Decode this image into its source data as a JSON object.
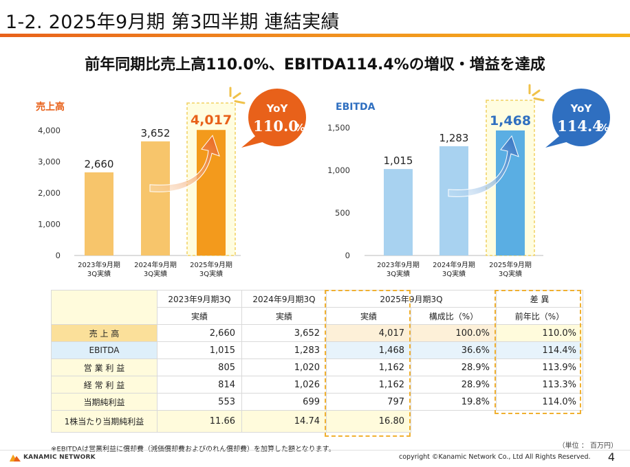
{
  "slide": {
    "title": "1-2. 2025年9月期 第3四半期 連結実績",
    "headline": "前年同期比売上高110.0%、EBITDA114.4%の増収・増益を達成"
  },
  "chart_data": [
    {
      "type": "bar",
      "title": "売上高",
      "categories": [
        "2023年9月期\n3Q実績",
        "2024年9月期\n3Q実績",
        "2025年9月期\n3Q実績"
      ],
      "values": [
        2660,
        3652,
        4017
      ],
      "value_labels": [
        "2,660",
        "3,652",
        "4,017"
      ],
      "ylim": [
        0,
        4000
      ],
      "ticks": [
        0,
        1000,
        2000,
        3000,
        4000
      ],
      "tick_labels": [
        "0",
        "1,000",
        "2,000",
        "3,000",
        "4,000"
      ],
      "yoy_label": "YoY",
      "yoy_value": "110.0",
      "yoy_unit": "%",
      "colors": {
        "bar": "#f7c56b",
        "highlight": "#f39a1c",
        "title": "#e8611a",
        "bubble": "#e8611a"
      }
    },
    {
      "type": "bar",
      "title": "EBITDA",
      "categories": [
        "2023年9月期\n3Q実績",
        "2024年9月期\n3Q実績",
        "2025年9月期\n3Q実績"
      ],
      "values": [
        1015,
        1283,
        1468
      ],
      "value_labels": [
        "1,015",
        "1,283",
        "1,468"
      ],
      "ylim": [
        0,
        1500
      ],
      "ticks": [
        0,
        500,
        1000,
        1500
      ],
      "tick_labels": [
        "0",
        "500",
        "1,000",
        "1,500"
      ],
      "yoy_label": "YoY",
      "yoy_value": "114.4",
      "yoy_unit": "%",
      "colors": {
        "bar": "#a8d2f0",
        "highlight": "#5aaee3",
        "title": "#2f6fc0",
        "bubble": "#2f6fc0"
      }
    }
  ],
  "table": {
    "headers": {
      "fy2023": "2023年9月期3Q",
      "fy2024": "2024年9月期3Q",
      "fy2025": "2025年9月期3Q",
      "diff": "差 異",
      "actual": "実績",
      "ratio": "構成比（%）",
      "yoy": "前年比（%）"
    },
    "rows": [
      {
        "label": "売 上 高",
        "v2023": "2,660",
        "v2024": "3,652",
        "v2025": "4,017",
        "ratio": "100.0%",
        "yoy": "110.0%"
      },
      {
        "label": "EBITDA",
        "v2023": "1,015",
        "v2024": "1,283",
        "v2025": "1,468",
        "ratio": "36.6%",
        "yoy": "114.4%"
      },
      {
        "label": "営 業 利 益",
        "v2023": "805",
        "v2024": "1,020",
        "v2025": "1,162",
        "ratio": "28.9%",
        "yoy": "113.9%"
      },
      {
        "label": "経 常 利 益",
        "v2023": "814",
        "v2024": "1,026",
        "v2025": "1,162",
        "ratio": "28.9%",
        "yoy": "113.3%"
      },
      {
        "label": "当期純利益",
        "v2023": "553",
        "v2024": "699",
        "v2025": "797",
        "ratio": "19.8%",
        "yoy": "114.0%"
      },
      {
        "label": "1株当たり当期純利益",
        "v2023": "11.66",
        "v2024": "14.74",
        "v2025": "16.80"
      }
    ]
  },
  "notes": {
    "unit": "（単位 ： 百万円）",
    "footnote": "※EBITDAは営業利益に償却費（減価償却費およびのれん償却費）を加算した額となります。"
  },
  "footer": {
    "company": "KANAMIC NETWORK",
    "copyright": "copyright ©Kanamic Network Co., Ltd All Rights Reserved.",
    "page": "4"
  }
}
